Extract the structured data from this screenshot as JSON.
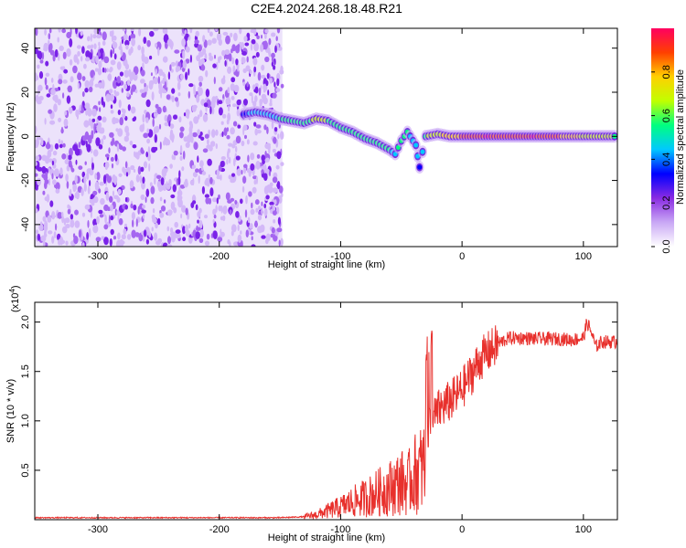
{
  "title": "C2E4.2024.268.18.48.R21",
  "chart_data": [
    {
      "type": "heatmap",
      "xlabel": "Height of straight line (km)",
      "ylabel": "Frequency (Hz)",
      "xlim": [
        -352,
        128
      ],
      "ylim": [
        -50,
        49
      ],
      "xticks": [
        -300,
        -200,
        -100,
        0,
        100
      ],
      "yticks": [
        -40,
        -20,
        0,
        20,
        40
      ],
      "colorbar": {
        "label": "Normalized spectral amplitude",
        "range": [
          0,
          1
        ],
        "ticks": [
          0.0,
          0.2,
          0.4,
          0.6,
          0.8
        ],
        "colors": [
          "#ffffff",
          "#c9a8f5",
          "#8a2be2",
          "#0000ff",
          "#00c8ff",
          "#00ff80",
          "#c0ff00",
          "#ffd000",
          "#ff4000",
          "#ff0060"
        ]
      },
      "noise_region_x": [
        -352,
        -148
      ],
      "ridge": [
        {
          "x": -180,
          "y": 10,
          "a": 0.35
        },
        {
          "x": -170,
          "y": 11,
          "a": 0.45
        },
        {
          "x": -160,
          "y": 10,
          "a": 0.4
        },
        {
          "x": -150,
          "y": 8,
          "a": 0.5
        },
        {
          "x": -140,
          "y": 7,
          "a": 0.6
        },
        {
          "x": -130,
          "y": 6,
          "a": 0.55
        },
        {
          "x": -120,
          "y": 8,
          "a": 0.65
        },
        {
          "x": -110,
          "y": 7,
          "a": 0.6
        },
        {
          "x": -100,
          "y": 4,
          "a": 0.55
        },
        {
          "x": -90,
          "y": 2,
          "a": 0.6
        },
        {
          "x": -80,
          "y": -1,
          "a": 0.55
        },
        {
          "x": -70,
          "y": -3,
          "a": 0.6
        },
        {
          "x": -60,
          "y": -6,
          "a": 0.5
        },
        {
          "x": -55,
          "y": -8,
          "a": 0.45
        },
        {
          "x": -50,
          "y": -2,
          "a": 0.55
        },
        {
          "x": -45,
          "y": 2,
          "a": 0.5
        },
        {
          "x": -38,
          "y": -4,
          "a": 0.45
        },
        {
          "x": -35,
          "y": -14,
          "a": 0.35
        },
        {
          "x": -30,
          "y": 0,
          "a": 0.6
        },
        {
          "x": -20,
          "y": 1,
          "a": 0.7
        },
        {
          "x": -10,
          "y": 0,
          "a": 0.75
        },
        {
          "x": 0,
          "y": 0,
          "a": 0.85
        },
        {
          "x": 20,
          "y": 0,
          "a": 0.95
        },
        {
          "x": 40,
          "y": 0,
          "a": 0.9
        },
        {
          "x": 60,
          "y": 0,
          "a": 0.95
        },
        {
          "x": 80,
          "y": 0,
          "a": 0.85
        },
        {
          "x": 100,
          "y": 0,
          "a": 0.7
        },
        {
          "x": 128,
          "y": 0,
          "a": 0.6
        }
      ]
    },
    {
      "type": "line",
      "xlabel": "Height of straight line (km)",
      "ylabel": "SNR (10 * v/v)",
      "multiplier": "(x10^4)",
      "xlim": [
        -352,
        128
      ],
      "ylim": [
        0,
        2.2
      ],
      "xticks": [
        -300,
        -200,
        -100,
        0,
        100
      ],
      "yticks": [
        0.5,
        1.0,
        1.5,
        2.0
      ],
      "ytick_labels": [
        "0.5",
        "1.0",
        "1.5",
        "2.0"
      ],
      "series": [
        {
          "color": "#e8302c",
          "x": [
            -352,
            -300,
            -250,
            -200,
            -150,
            -130,
            -120,
            -110,
            -100,
            -90,
            -80,
            -70,
            -60,
            -50,
            -45,
            -40,
            -35,
            -30,
            -27,
            -24,
            -20,
            -15,
            -10,
            -5,
            0,
            5,
            10,
            15,
            20,
            25,
            30,
            35,
            40,
            50,
            60,
            70,
            80,
            90,
            95,
            100,
            103,
            107,
            110,
            115,
            120,
            128
          ],
          "y": [
            0.02,
            0.02,
            0.02,
            0.02,
            0.02,
            0.03,
            0.05,
            0.09,
            0.13,
            0.18,
            0.22,
            0.27,
            0.32,
            0.38,
            0.35,
            0.45,
            0.5,
            0.55,
            1.05,
            1.0,
            1.1,
            1.15,
            1.2,
            1.25,
            1.32,
            1.42,
            1.52,
            1.62,
            1.68,
            1.73,
            1.78,
            1.82,
            1.84,
            1.84,
            1.83,
            1.83,
            1.83,
            1.82,
            1.83,
            1.84,
            2.0,
            1.88,
            1.75,
            1.8,
            1.8,
            1.8
          ]
        }
      ]
    }
  ]
}
